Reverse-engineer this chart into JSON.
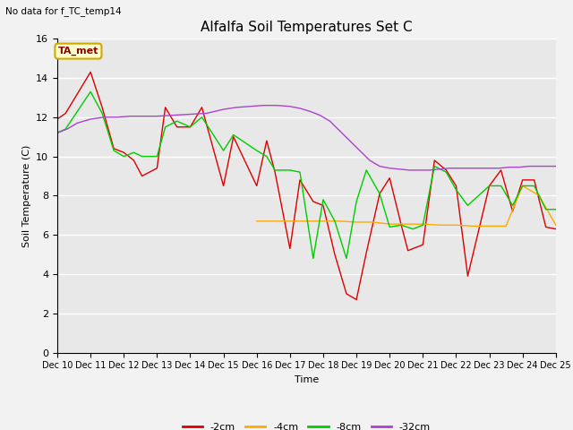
{
  "title": "Alfalfa Soil Temperatures Set C",
  "xlabel": "Time",
  "ylabel": "Soil Temperature (C)",
  "note": "No data for f_TC_temp14",
  "annotation": "TA_met",
  "ylim": [
    0,
    16
  ],
  "plot_bg": "#e8e8e8",
  "fig_bg": "#f2f2f2",
  "grid_color": "white",
  "x_labels": [
    "Dec 10",
    "Dec 11",
    "Dec 12",
    "Dec 13",
    "Dec 14",
    "Dec 15",
    "Dec 16",
    "Dec 17",
    "Dec 18",
    "Dec 19",
    "Dec 20",
    "Dec 21",
    "Dec 22",
    "Dec 23",
    "Dec 24",
    "Dec 25"
  ],
  "series": {
    "2cm": {
      "color": "#dd0000",
      "label": "-2cm",
      "x": [
        0,
        0.25,
        1.0,
        1.35,
        1.7,
        2.0,
        2.3,
        2.55,
        3.0,
        3.25,
        3.6,
        4.0,
        4.35,
        5.0,
        5.3,
        6.0,
        6.3,
        6.55,
        7.0,
        7.3,
        7.7,
        8.0,
        8.35,
        8.7,
        9.0,
        9.3,
        9.7,
        10.0,
        10.35,
        10.55,
        11.0,
        11.35,
        11.7,
        12.0,
        12.35,
        13.0,
        13.35,
        13.7,
        14.0,
        14.35,
        14.7,
        15.0
      ],
      "y": [
        11.9,
        12.2,
        14.3,
        12.5,
        10.4,
        10.2,
        9.8,
        9.0,
        9.4,
        12.5,
        11.5,
        11.5,
        12.5,
        8.5,
        11.0,
        8.5,
        10.8,
        9.2,
        5.3,
        8.8,
        7.7,
        7.5,
        5.0,
        3.0,
        2.7,
        5.1,
        8.1,
        8.9,
        6.5,
        5.2,
        5.5,
        9.8,
        9.3,
        8.5,
        3.9,
        8.5,
        9.3,
        7.2,
        8.8,
        8.8,
        6.4,
        6.3
      ]
    },
    "4cm": {
      "color": "#ffaa00",
      "label": "-4cm",
      "x": [
        6.0,
        6.5,
        7.0,
        7.5,
        8.0,
        8.5,
        9.0,
        9.5,
        10.0,
        10.5,
        11.0,
        11.5,
        12.0,
        12.5,
        13.0,
        13.5,
        14.0,
        14.5,
        15.0
      ],
      "y": [
        6.7,
        6.7,
        6.7,
        6.7,
        6.7,
        6.7,
        6.65,
        6.65,
        6.55,
        6.55,
        6.55,
        6.5,
        6.5,
        6.45,
        6.45,
        6.45,
        8.5,
        8.0,
        6.5
      ]
    },
    "8cm": {
      "color": "#00cc00",
      "label": "-8cm",
      "x": [
        0,
        0.25,
        1.0,
        1.35,
        1.7,
        2.0,
        2.3,
        2.55,
        3.0,
        3.25,
        3.6,
        4.0,
        4.35,
        5.0,
        5.3,
        6.0,
        6.3,
        6.55,
        7.0,
        7.3,
        7.7,
        8.0,
        8.35,
        8.7,
        9.0,
        9.3,
        9.7,
        10.0,
        10.35,
        10.7,
        11.0,
        11.35,
        11.7,
        12.0,
        12.35,
        13.0,
        13.35,
        13.7,
        14.0,
        14.35,
        14.7,
        15.0
      ],
      "y": [
        11.2,
        11.4,
        13.3,
        12.2,
        10.3,
        10.0,
        10.2,
        10.0,
        10.0,
        11.5,
        11.8,
        11.5,
        12.0,
        10.3,
        11.1,
        10.3,
        10.0,
        9.3,
        9.3,
        9.2,
        4.8,
        7.8,
        6.7,
        4.8,
        7.7,
        9.3,
        8.1,
        6.4,
        6.5,
        6.3,
        6.5,
        9.5,
        9.2,
        8.3,
        7.5,
        8.5,
        8.5,
        7.5,
        8.5,
        8.5,
        7.3,
        7.3
      ]
    },
    "32cm": {
      "color": "#aa44cc",
      "label": "-32cm",
      "x": [
        0,
        0.3,
        0.6,
        1.0,
        1.4,
        1.8,
        2.2,
        2.6,
        3.0,
        3.5,
        4.0,
        4.5,
        5.0,
        5.4,
        5.8,
        6.2,
        6.6,
        7.0,
        7.3,
        7.6,
        7.9,
        8.2,
        8.5,
        8.8,
        9.1,
        9.4,
        9.7,
        10.0,
        10.3,
        10.6,
        10.9,
        11.2,
        11.5,
        11.8,
        12.1,
        12.4,
        12.7,
        13.0,
        13.3,
        13.6,
        13.9,
        14.2,
        14.5,
        14.8,
        15.0
      ],
      "y": [
        11.2,
        11.4,
        11.7,
        11.9,
        12.0,
        12.0,
        12.05,
        12.05,
        12.05,
        12.1,
        12.15,
        12.2,
        12.4,
        12.5,
        12.55,
        12.6,
        12.6,
        12.55,
        12.45,
        12.3,
        12.1,
        11.8,
        11.3,
        10.8,
        10.3,
        9.8,
        9.5,
        9.4,
        9.35,
        9.3,
        9.3,
        9.3,
        9.35,
        9.4,
        9.4,
        9.4,
        9.4,
        9.4,
        9.4,
        9.45,
        9.45,
        9.5,
        9.5,
        9.5,
        9.5
      ]
    }
  }
}
